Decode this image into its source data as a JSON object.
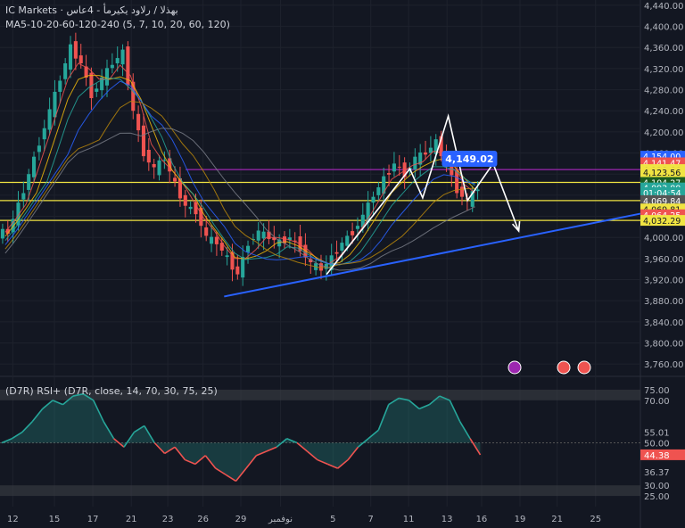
{
  "header": {
    "symbol_line": "IC Markets · ‏بهذلا / رلاود يكيرمأ - ‏4‏عاس",
    "ma_line": "MA5-10-20-60-120-240 (5, 7, 10, 20, 60, 120)"
  },
  "rsi_header": "(D7R) RSI+ (D7R, close, 14, 70, 30, 75, 25)",
  "colors": {
    "background": "#131722",
    "up": "#26a69a",
    "down": "#ef5350",
    "purple_line": "#9c27b0",
    "yellow_line": "#f0e442",
    "trendline": "#2962ff",
    "grid": "#1e222d"
  },
  "chart_data": [
    {
      "type": "candlestick",
      "title": "",
      "ylim": [
        3740,
        4450
      ],
      "y_ticks": [
        4440,
        4400,
        4360,
        4320,
        4280,
        4240,
        4200,
        4160,
        4120,
        4080,
        4040,
        4000,
        3960,
        3920,
        3880,
        3840,
        3800,
        3760
      ],
      "y_tick_labels": [
        "4,440.00",
        "4,400.00",
        "4,360.00",
        "4,320.00",
        "4,280.00",
        "4,240.00",
        "4,200.00",
        "4,160.00",
        "4,120.00",
        "4,080.00",
        "4,040.00",
        "4,000.00",
        "3,960.00",
        "3,920.00",
        "3,880.00",
        "3,840.00",
        "3,800.00",
        "3,760.00"
      ],
      "x_tick_labels": [
        "12",
        "15",
        "17",
        "21",
        "23",
        "26",
        "29",
        "نوفمبر",
        "5",
        "7",
        "11",
        "13",
        "16",
        "19",
        "21",
        "25"
      ],
      "x_tick_fracs": [
        0.02,
        0.085,
        0.145,
        0.205,
        0.262,
        0.317,
        0.376,
        0.438,
        0.52,
        0.579,
        0.638,
        0.698,
        0.752,
        0.812,
        0.87,
        0.93
      ],
      "close_path": [
        4010,
        4060,
        4120,
        4180,
        4240,
        4300,
        4360,
        4330,
        4270,
        4300,
        4330,
        4350,
        4240,
        4160,
        4130,
        4150,
        4100,
        4060,
        4050,
        4000,
        3990,
        3960,
        3930,
        3990,
        4010,
        4000,
        3990,
        4000,
        3980,
        3950,
        3940,
        3960,
        3990,
        4010,
        4040,
        4080,
        4110,
        4140,
        4120,
        4150,
        4160,
        4180,
        4140,
        4090,
        4070,
        4093.8
      ],
      "price_labels": [
        {
          "label": "4,154.00",
          "value": 4154,
          "bg": "#2962ff"
        },
        {
          "label": "4,141.47",
          "value": 4141.47,
          "bg": "#ef5350"
        },
        {
          "label": "4,128.66",
          "value": 4128.66,
          "bg": "#f0e442",
          "fg": "#131722"
        },
        {
          "label": "4,123.56",
          "value": 4123.56,
          "bg": "#f0e442",
          "fg": "#131722"
        },
        {
          "label": "4,104.27",
          "value": 4104.27,
          "bg": "#1b5e20"
        },
        {
          "label": "4,093.80",
          "value": 4093.8,
          "bg": "#26a69a"
        },
        {
          "label": "01:04:54",
          "value": 4085,
          "bg": "#26a69a"
        },
        {
          "label": "4,069.84",
          "value": 4069.84,
          "bg": "#555"
        },
        {
          "label": "4,069.81",
          "value": 4054,
          "bg": "#f0e442",
          "fg": "#131722"
        },
        {
          "label": "4,064.25",
          "value": 4043,
          "bg": "#ef5350"
        },
        {
          "label": "4,032.29",
          "value": 4032.29,
          "bg": "#f0e442",
          "fg": "#131722"
        }
      ],
      "annotation": {
        "label": "4,149.02",
        "value": 4149.02
      },
      "horizontal_lines": [
        {
          "value": 4128.66,
          "color": "#9c27b0"
        },
        {
          "value": 4104.27,
          "color": "#f0e442"
        },
        {
          "value": 4069.81,
          "color": "#f0e442"
        },
        {
          "value": 4032.29,
          "color": "#f0e442"
        }
      ],
      "trendline": {
        "from": [
          0.35,
          3888
        ],
        "to": [
          1.0,
          4045
        ]
      },
      "zigzag_path": [
        [
          0.51,
          3930
        ],
        [
          0.64,
          4130
        ],
        [
          0.66,
          4075
        ],
        [
          0.7,
          4230
        ],
        [
          0.73,
          4070
        ],
        [
          0.77,
          4140
        ],
        [
          0.81,
          4012
        ]
      ],
      "event_icons": [
        "lightning-icon",
        "us-flag-icon",
        "us-flag-icon"
      ]
    },
    {
      "type": "line",
      "title": "",
      "ylim": [
        20,
        80
      ],
      "y_tick_labels": [
        "75.00",
        "70.00",
        "55.01",
        "50.00",
        "44.38",
        "36.37",
        "30.00",
        "25.00"
      ],
      "y_ticks": [
        75,
        70,
        55.01,
        50,
        44.38,
        36.37,
        30,
        25
      ],
      "series": [
        {
          "values": [
            50,
            52,
            55,
            60,
            66,
            70,
            68,
            72,
            73,
            70,
            60,
            52,
            48,
            55,
            58,
            50,
            45,
            48,
            42,
            40,
            44,
            38,
            35,
            32,
            38,
            44,
            46,
            48,
            52,
            50,
            46,
            42,
            40,
            38,
            42,
            48,
            52,
            56,
            68,
            71,
            70,
            66,
            68,
            72,
            70,
            60,
            52,
            44.38
          ]
        }
      ]
    }
  ]
}
